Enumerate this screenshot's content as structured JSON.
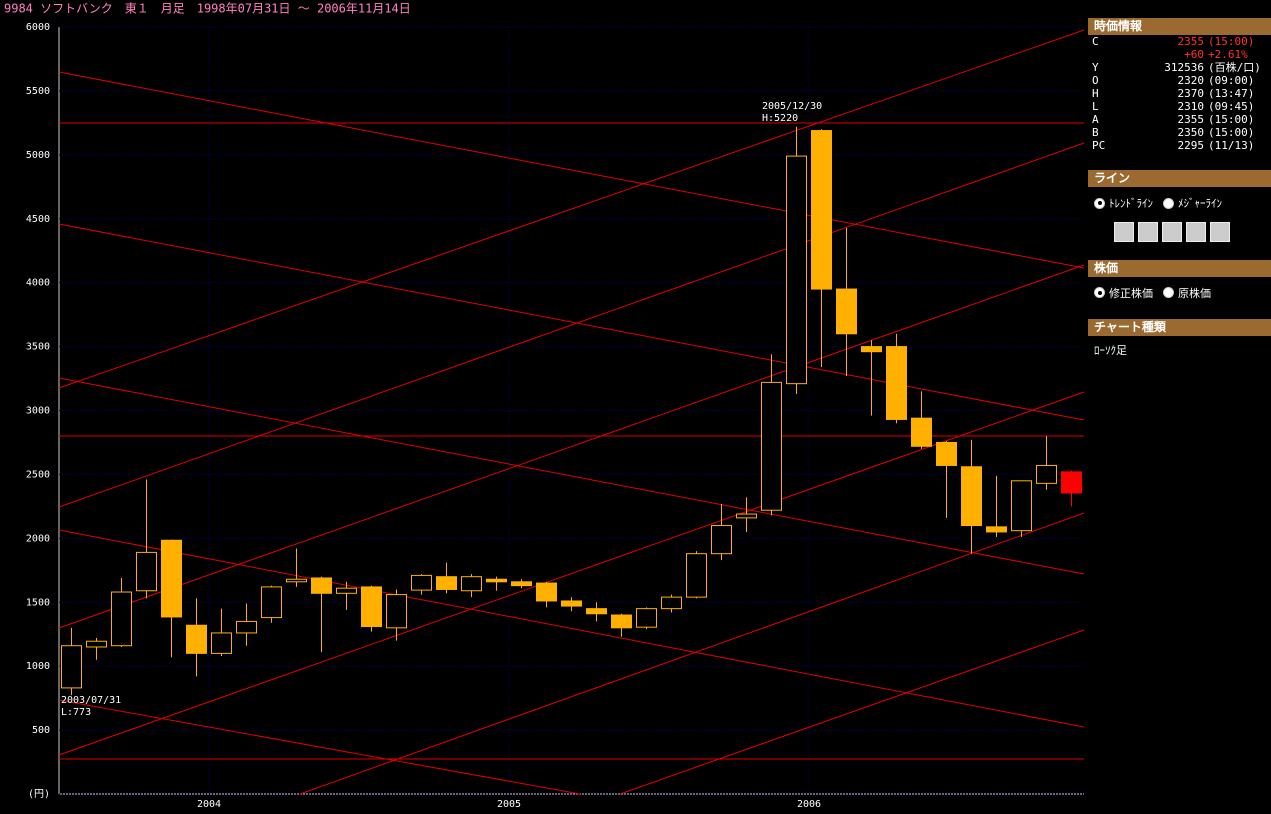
{
  "chart_data": {
    "type": "candlestick",
    "title": "9984 ソフトバンク　東１　月足　1998年07月31日 ～ 2006年11月14日",
    "categories": [
      null,
      null,
      null,
      null,
      null,
      null,
      "2004",
      null,
      null,
      null,
      null,
      null,
      null,
      null,
      null,
      null,
      null,
      null,
      "2005",
      null,
      null,
      null,
      null,
      null,
      null,
      null,
      null,
      null,
      null,
      null,
      "2006",
      null,
      null,
      null,
      null,
      null,
      null,
      null,
      null,
      null,
      null
    ],
    "open": [
      830,
      1150,
      1160,
      1590,
      1985,
      1320,
      1100,
      1260,
      1380,
      1660,
      1690,
      1570,
      1620,
      1300,
      1595,
      1700,
      1590,
      1680,
      1660,
      1650,
      1510,
      1450,
      1400,
      1305,
      1450,
      1540,
      1880,
      2160,
      2220,
      3210,
      5190,
      3950,
      3500,
      3500,
      2940,
      2750,
      2560,
      2090,
      2060,
      2430,
      2520
    ],
    "high": [
      1300,
      1220,
      1690,
      2460,
      1990,
      1530,
      1450,
      1490,
      1630,
      1920,
      1700,
      1660,
      1630,
      1600,
      1720,
      1810,
      1720,
      1700,
      1680,
      1660,
      1540,
      1500,
      1410,
      1460,
      1560,
      1900,
      2270,
      2320,
      3440,
      5220,
      5200,
      4430,
      3550,
      3600,
      3150,
      2760,
      2770,
      2490,
      2450,
      2800,
      2530
    ],
    "low": [
      773,
      1050,
      1150,
      1530,
      1070,
      920,
      1080,
      1160,
      1340,
      1620,
      1110,
      1440,
      1270,
      1200,
      1560,
      1570,
      1540,
      1590,
      1610,
      1460,
      1430,
      1350,
      1230,
      1290,
      1420,
      1530,
      1830,
      2050,
      2180,
      3130,
      3340,
      3270,
      2960,
      2900,
      2700,
      2160,
      1880,
      2010,
      2010,
      2380,
      2250
    ],
    "close": [
      1160,
      1195,
      1580,
      1890,
      1385,
      1100,
      1260,
      1350,
      1620,
      1680,
      1570,
      1610,
      1310,
      1560,
      1710,
      1600,
      1700,
      1660,
      1630,
      1510,
      1470,
      1410,
      1300,
      1450,
      1540,
      1880,
      2100,
      2190,
      3220,
      4990,
      3950,
      3600,
      3460,
      2930,
      2720,
      2570,
      2100,
      2050,
      2450,
      2570,
      2355
    ],
    "color": "#ffb000",
    "last_color": "#ff0000",
    "ylim": [
      0,
      6000
    ],
    "yticks": [
      {
        "value": 0,
        "label": "(円)"
      },
      500,
      1000,
      1500,
      2000,
      2500,
      3000,
      3500,
      4000,
      4500,
      5000,
      5500,
      6000
    ],
    "grid": true,
    "annotations": [
      "2005/12/30",
      "H:5220",
      "2003/07/31",
      "L:773"
    ]
  },
  "panel": {
    "quote": {
      "title": "時価情報",
      "rows": [
        {
          "label": "C",
          "value": "2355",
          "note": "(15:00)"
        },
        {
          "value": "+60",
          "note": "+2.61%"
        },
        {
          "label": "Y",
          "value": "312536",
          "note": "(百株/口)"
        },
        {
          "label": "O",
          "value": "2320",
          "note": "(09:00)"
        },
        {
          "label": "H",
          "value": "2370",
          "note": "(13:47)"
        },
        {
          "label": "L",
          "value": "2310",
          "note": "(09:45)"
        },
        {
          "label": "A",
          "value": "2355",
          "note": "(15:00)"
        },
        {
          "label": "B",
          "value": "2350",
          "note": "(15:00)"
        },
        {
          "label": "PC",
          "value": "2295",
          "note": "(11/13)"
        }
      ]
    },
    "line": {
      "title": "ライン",
      "options": [
        "ﾄﾚﾝﾄﾞﾗｲﾝ",
        "ﾒｼﾞｬｰﾗｲﾝ"
      ]
    },
    "price": {
      "title": "株価",
      "options": [
        "修正株価",
        "原株価"
      ]
    },
    "chart_type": {
      "title": "チャート種類",
      "value": "ﾛｰｿｸ足"
    }
  }
}
